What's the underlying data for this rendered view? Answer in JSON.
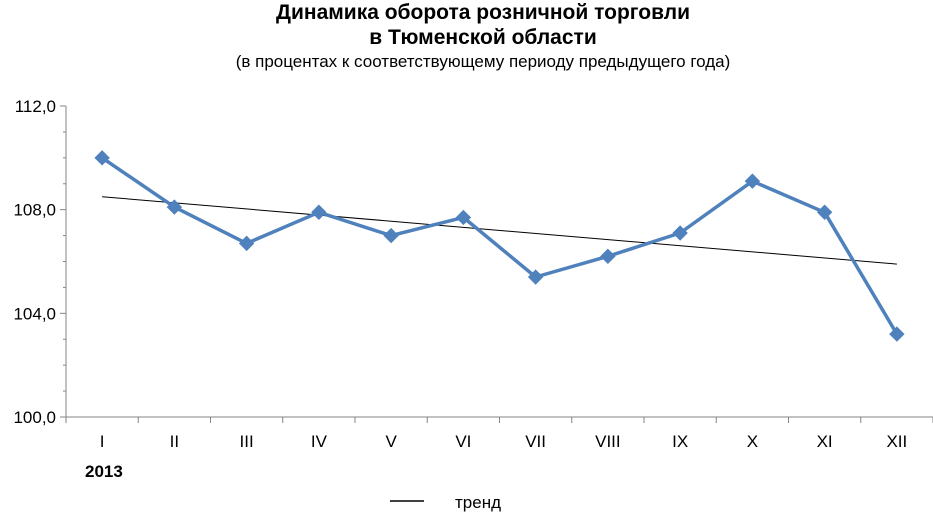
{
  "chart_data": {
    "type": "line",
    "title": [
      "Динамика оборота розничной торговли",
      "в Тюменской области"
    ],
    "subtitle": "(в процентах к соответствующему периоду предыдущего года)",
    "categories": [
      "I",
      "II",
      "III",
      "IV",
      "V",
      "VI",
      "VII",
      "VIII",
      "IX",
      "X",
      "XI",
      "XII"
    ],
    "category_group_label": "2013",
    "series": [
      {
        "values": [
          110.0,
          108.1,
          106.7,
          107.9,
          107.0,
          107.7,
          105.4,
          106.2,
          107.1,
          109.1,
          107.9,
          103.2
        ],
        "color": "#4F81BD",
        "marker": "diamond"
      }
    ],
    "trend": {
      "name": "тренд",
      "start": 108.5,
      "end": 105.9,
      "color": "#000000"
    },
    "ylim": [
      100,
      112
    ],
    "yticks": [
      100,
      104,
      108,
      112
    ],
    "ytick_labels": [
      "100,0",
      "104,0",
      "108,0",
      "112,0"
    ],
    "grid": false,
    "legend_placement": "bottom-center"
  }
}
